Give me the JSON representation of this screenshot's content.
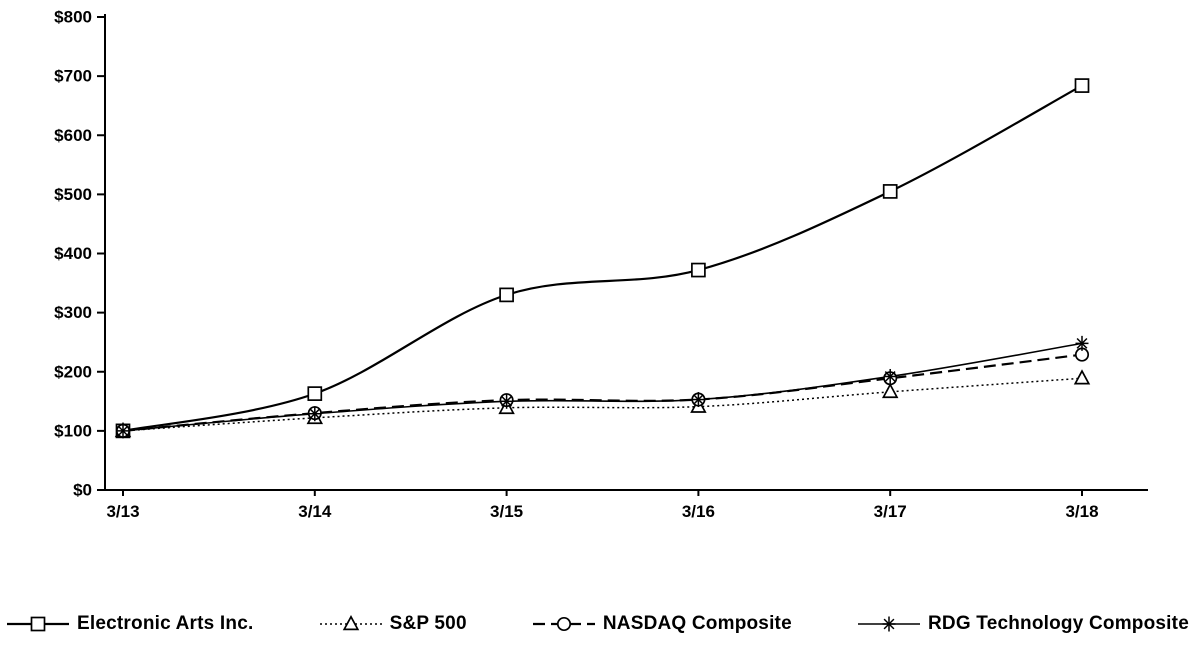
{
  "chart_data": {
    "type": "line",
    "title": "",
    "x": [
      "3/13",
      "3/14",
      "3/15",
      "3/16",
      "3/17",
      "3/18"
    ],
    "ylim": [
      0,
      800
    ],
    "y_step": 100,
    "y_prefix": "$",
    "y_tick_labels": [
      "$0",
      "$100",
      "$200",
      "$300",
      "$400",
      "$500",
      "$600",
      "$700",
      "$800"
    ],
    "grid": false,
    "legend_position": "bottom",
    "line_color": "#000000",
    "background_color": "#ffffff",
    "series": [
      {
        "name": "Electronic Arts Inc.",
        "values": [
          100,
          163,
          330,
          372,
          505,
          684
        ],
        "line_style": "solid",
        "marker": "square",
        "stroke_width": 2.2
      },
      {
        "name": "S&P 500",
        "values": [
          100,
          122,
          139,
          141,
          166,
          189
        ],
        "line_style": "dotted",
        "marker": "triangle",
        "stroke_width": 1.5
      },
      {
        "name": "NASDAQ Composite",
        "values": [
          100,
          130,
          152,
          153,
          189,
          229
        ],
        "line_style": "dashed",
        "marker": "circle",
        "stroke_width": 2.2
      },
      {
        "name": "RDG Technology Composite",
        "values": [
          100,
          129,
          150,
          153,
          192,
          248
        ],
        "line_style": "solid",
        "marker": "asterisk",
        "stroke_width": 1.6
      }
    ]
  }
}
